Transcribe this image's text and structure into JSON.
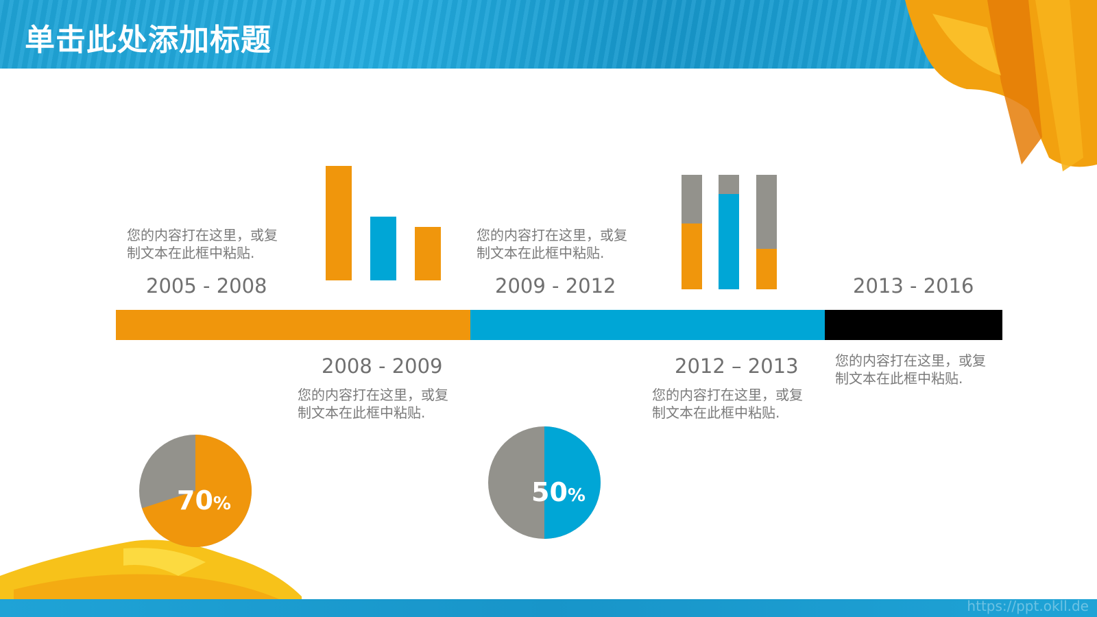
{
  "title": "单击此处添加标题",
  "text_block": {
    "line1": "您的内容打在这里，或复",
    "line2": "制文本在此框中粘贴."
  },
  "years": {
    "y1": "2005 - 2008",
    "y2": "2008 - 2009",
    "y3": "2009 - 2012",
    "y4": "2012 – 2013",
    "y5": "2013 - 2016"
  },
  "pies": {
    "left": {
      "value": "70",
      "unit": "%",
      "fraction": 0.7
    },
    "right": {
      "value": "50",
      "unit": "%",
      "fraction": 0.5
    }
  },
  "colors": {
    "orange": "#f0960c",
    "blue": "#00a6d6",
    "gray": "#93928c",
    "black": "#000000",
    "header_blue": "#1fa3d6"
  },
  "watermark": "https://ppt.okll.de"
}
